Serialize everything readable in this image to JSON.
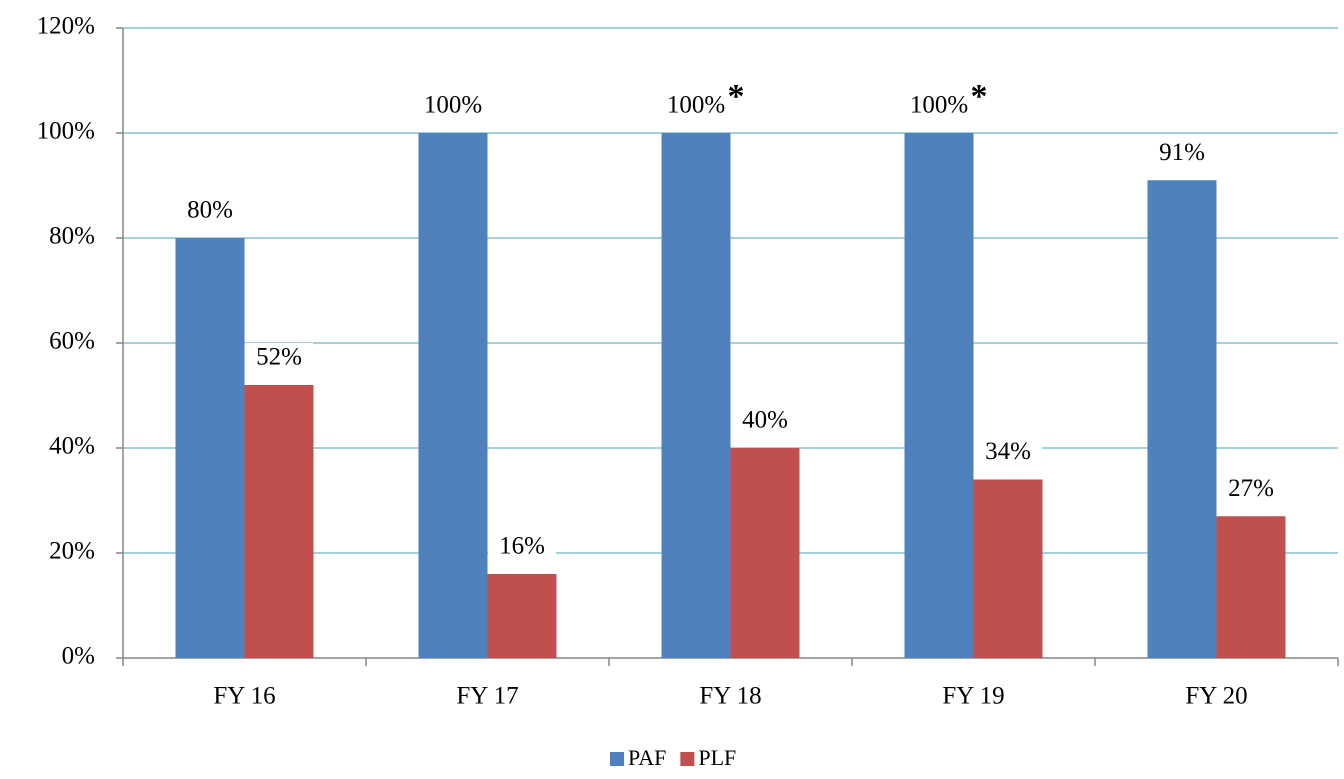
{
  "chart_data": {
    "type": "bar",
    "categories": [
      "FY 16",
      "FY 17",
      "FY 18",
      "FY 19",
      "FY 20"
    ],
    "series": [
      {
        "name": "PAF",
        "color": "#4f81bd",
        "values": [
          80,
          100,
          100,
          100,
          91
        ],
        "value_labels": [
          "80%",
          "100%",
          "100%",
          "100%",
          "91%"
        ]
      },
      {
        "name": "PLF",
        "color": "#c0504d",
        "values": [
          52,
          16,
          40,
          34,
          27
        ],
        "value_labels": [
          "52%",
          "16%",
          "40%",
          "34%",
          "27%"
        ]
      }
    ],
    "annotations": [
      {
        "text": "*",
        "category": "FY 18",
        "series": "PAF"
      },
      {
        "text": "*",
        "category": "FY 19",
        "series": "PAF"
      }
    ],
    "ylim": [
      0,
      120
    ],
    "yticks": [
      {
        "value": 0,
        "label": "0%"
      },
      {
        "value": 20,
        "label": "20%"
      },
      {
        "value": 40,
        "label": "40%"
      },
      {
        "value": 60,
        "label": "60%"
      },
      {
        "value": 80,
        "label": "80%"
      },
      {
        "value": 100,
        "label": "100%"
      },
      {
        "value": 120,
        "label": "120%"
      }
    ],
    "grid": true,
    "legend": "bottom"
  }
}
